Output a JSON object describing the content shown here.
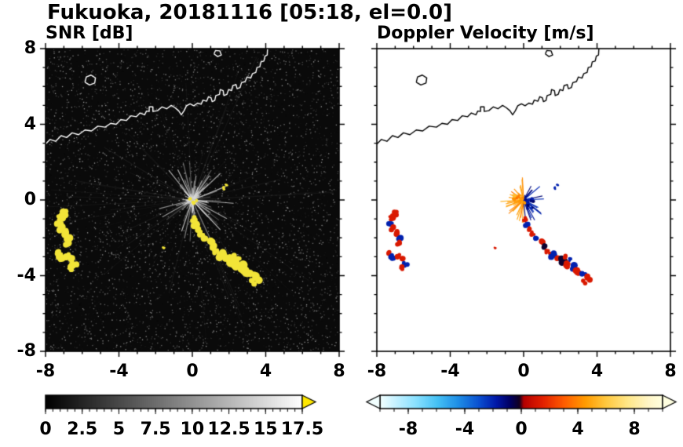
{
  "header": {
    "title": "Fukuoka, 20181116 [05:18, el=0.0]"
  },
  "chart_data": {
    "type": "heatmap",
    "subtype": "dual-panel weather-radar PPI scan",
    "station": "Fukuoka",
    "date": "20181116",
    "time": "05:18",
    "elevation": "el=0.0",
    "axes_range": [
      -8,
      8
    ],
    "x_ticks": [
      -8,
      -4,
      0,
      4,
      8
    ],
    "x_tick_labels": [
      "-8",
      "-4",
      "0",
      "4",
      "8"
    ],
    "y_ticks": [
      -8,
      -4,
      0,
      4,
      8
    ],
    "y_tick_labels": [
      "-8",
      "-4",
      "0",
      "4",
      "8"
    ],
    "grid": false,
    "panels": [
      {
        "title": "SNR [dB]",
        "background": "#0a0a0a",
        "coast_color": "#ffffff",
        "echo_color": "#f2e438",
        "colorbar": {
          "range": [
            0,
            17.5
          ],
          "tick_values": [
            0,
            2.5,
            5,
            7.5,
            10,
            12.5,
            15,
            17.5
          ],
          "tick_labels": [
            "0",
            "2.5",
            "5",
            "7.5",
            "10",
            "12.5",
            "15",
            "17.5"
          ],
          "minor_tick_step": 0.5,
          "scheme": "grayscale black to white",
          "start_color": "#000000",
          "end_color": "#ffffff",
          "over_arrow_color": "#ffe800"
        }
      },
      {
        "title": "Doppler Velocity [m/s]",
        "background": "#ffffff",
        "coast_color": "#000000",
        "colorbar": {
          "range": [
            -10,
            10
          ],
          "tick_values": [
            -8,
            -4,
            0,
            4,
            8
          ],
          "tick_labels": [
            "-8",
            "-4",
            "0",
            "4",
            "8"
          ],
          "minor_tick_step": 1,
          "scheme": "diverging cyan-blue-navy / red-orange-yellow",
          "under_arrow_color": "#f2ffff",
          "over_arrow_color": "#ffffe0",
          "colormap_stops": [
            [
              -10,
              "#f2ffff"
            ],
            [
              -9,
              "#c8f2ff"
            ],
            [
              -7.5,
              "#8ae1ff"
            ],
            [
              -6,
              "#46c2f5"
            ],
            [
              -4.5,
              "#1e8ee6"
            ],
            [
              -3,
              "#0a4fd0"
            ],
            [
              -1.8,
              "#0018a8"
            ],
            [
              -0.8,
              "#000060"
            ],
            [
              -0.15,
              "#120020"
            ],
            [
              0.15,
              "#b40000"
            ],
            [
              1.5,
              "#e32000"
            ],
            [
              3,
              "#ff5c00"
            ],
            [
              4.5,
              "#ff9b00"
            ],
            [
              6,
              "#ffc940"
            ],
            [
              7.5,
              "#ffe788"
            ],
            [
              9,
              "#fff6c8"
            ],
            [
              10,
              "#ffffe0"
            ]
          ]
        }
      }
    ],
    "echo_points_columns": [
      "x_km",
      "y_km",
      "radius_km",
      "doppler_velocity_ms"
    ],
    "echo_points_snr_db": 20,
    "echo_points": [
      [
        -7.0,
        -0.72,
        0.2,
        1.2
      ],
      [
        -7.22,
        -0.95,
        0.22,
        1.2
      ],
      [
        -7.3,
        -1.22,
        0.2,
        -2
      ],
      [
        -7.12,
        -1.5,
        0.22,
        1.2
      ],
      [
        -6.88,
        -1.75,
        0.2,
        1.2
      ],
      [
        -6.72,
        -2.02,
        0.22,
        -2
      ],
      [
        -6.85,
        -2.28,
        0.18,
        1.2
      ],
      [
        -7.42,
        -2.85,
        0.2,
        1.2
      ],
      [
        -7.15,
        -3.02,
        0.2,
        -2
      ],
      [
        -6.85,
        -2.95,
        0.18,
        1.2
      ],
      [
        -6.6,
        -3.15,
        0.2,
        1.2
      ],
      [
        -6.42,
        -3.42,
        0.22,
        -2
      ],
      [
        -6.68,
        -3.58,
        0.18,
        1.2
      ],
      [
        0.05,
        -1.02,
        0.16,
        1.2
      ],
      [
        0.18,
        -1.28,
        0.18,
        -2
      ],
      [
        0.32,
        -1.52,
        0.16,
        1.2
      ],
      [
        0.5,
        -1.78,
        0.18,
        1.2
      ],
      [
        0.72,
        -2.0,
        0.18,
        -2
      ],
      [
        0.95,
        -2.22,
        0.2,
        1.2
      ],
      [
        1.1,
        -2.48,
        0.18,
        -0.3
      ],
      [
        1.32,
        -2.72,
        0.2,
        1.2
      ],
      [
        1.58,
        -2.92,
        0.22,
        -2
      ],
      [
        1.85,
        -3.08,
        0.22,
        1.2
      ],
      [
        2.12,
        -3.22,
        0.24,
        -0.3
      ],
      [
        2.3,
        -3.02,
        0.16,
        1.2
      ],
      [
        2.55,
        -3.18,
        0.16,
        -2
      ],
      [
        2.42,
        -3.42,
        0.22,
        1.2
      ],
      [
        2.7,
        -3.58,
        0.24,
        -2
      ],
      [
        2.98,
        -3.75,
        0.26,
        1.2
      ],
      [
        3.28,
        -3.95,
        0.24,
        -2
      ],
      [
        3.5,
        -4.15,
        0.22,
        1.2
      ],
      [
        3.3,
        -4.32,
        0.18,
        1.2
      ],
      [
        -1.55,
        -2.55,
        0.08,
        1.2
      ],
      [
        1.7,
        0.62,
        0.09,
        -2
      ],
      [
        1.85,
        0.78,
        0.07,
        -2
      ],
      [
        0.02,
        -0.12,
        0.1,
        4.5
      ],
      [
        -0.15,
        0.08,
        0.09,
        4.5
      ],
      [
        0.2,
        -0.05,
        0.08,
        -2
      ]
    ],
    "coastline": [
      [
        [
          -8,
          2.95
        ],
        [
          -7.75,
          3.2
        ],
        [
          -7.45,
          3.1
        ],
        [
          -7.15,
          3.4
        ],
        [
          -6.85,
          3.3
        ],
        [
          -6.55,
          3.55
        ],
        [
          -6.2,
          3.45
        ],
        [
          -5.85,
          3.7
        ],
        [
          -5.5,
          3.65
        ],
        [
          -5.15,
          3.9
        ],
        [
          -4.75,
          3.85
        ],
        [
          -4.45,
          4.05
        ],
        [
          -4.15,
          4.0
        ],
        [
          -3.9,
          4.25
        ],
        [
          -3.6,
          4.2
        ],
        [
          -3.35,
          4.45
        ],
        [
          -3.05,
          4.4
        ],
        [
          -2.85,
          4.6
        ],
        [
          -2.6,
          4.5
        ],
        [
          -2.5,
          4.7
        ],
        [
          -2.35,
          4.68
        ],
        [
          -2.35,
          4.92
        ],
        [
          -2.15,
          4.92
        ],
        [
          -2.15,
          4.68
        ],
        [
          -1.9,
          4.72
        ],
        [
          -1.65,
          4.92
        ],
        [
          -1.4,
          4.82
        ],
        [
          -1.15,
          5.0
        ],
        [
          -0.95,
          4.88
        ],
        [
          -0.75,
          4.72
        ],
        [
          -0.6,
          4.5
        ],
        [
          -0.45,
          4.72
        ],
        [
          -0.32,
          4.98
        ],
        [
          -0.12,
          5.08
        ],
        [
          0.08,
          4.98
        ],
        [
          0.28,
          5.12
        ],
        [
          0.48,
          5.06
        ],
        [
          0.58,
          5.28
        ],
        [
          0.78,
          5.22
        ],
        [
          0.88,
          5.46
        ],
        [
          1.02,
          5.4
        ],
        [
          1.08,
          5.2
        ],
        [
          1.22,
          5.26
        ],
        [
          1.28,
          5.52
        ],
        [
          1.48,
          5.58
        ],
        [
          1.52,
          5.84
        ],
        [
          1.68,
          5.78
        ],
        [
          1.72,
          5.52
        ],
        [
          1.88,
          5.58
        ],
        [
          1.98,
          5.84
        ],
        [
          2.14,
          5.78
        ],
        [
          2.2,
          6.04
        ],
        [
          2.38,
          6.1
        ],
        [
          2.44,
          5.88
        ],
        [
          2.6,
          5.94
        ],
        [
          2.68,
          6.2
        ],
        [
          2.88,
          6.26
        ],
        [
          2.98,
          6.5
        ],
        [
          3.18,
          6.44
        ],
        [
          3.28,
          6.68
        ],
        [
          3.46,
          6.74
        ],
        [
          3.52,
          7.0
        ],
        [
          3.68,
          7.04
        ],
        [
          3.74,
          7.3
        ],
        [
          3.9,
          7.34
        ],
        [
          3.96,
          7.6
        ],
        [
          4.08,
          7.66
        ],
        [
          4.1,
          8.0
        ]
      ],
      [
        [
          -5.85,
          6.22
        ],
        [
          -5.6,
          6.08
        ],
        [
          -5.32,
          6.18
        ],
        [
          -5.28,
          6.45
        ],
        [
          -5.52,
          6.6
        ],
        [
          -5.78,
          6.5
        ],
        [
          -5.85,
          6.22
        ]
      ],
      [
        [
          1.18,
          7.72
        ],
        [
          1.38,
          7.58
        ],
        [
          1.58,
          7.66
        ],
        [
          1.5,
          7.88
        ],
        [
          1.26,
          7.9
        ],
        [
          1.18,
          7.72
        ]
      ]
    ],
    "ground_clutter": {
      "x": 0,
      "y": 0,
      "spokes": 95,
      "max_radius": 2.1,
      "left_vel": 4.5,
      "right_vel": -1.6
    },
    "noise_speckle": {
      "dots": 9500
    }
  }
}
